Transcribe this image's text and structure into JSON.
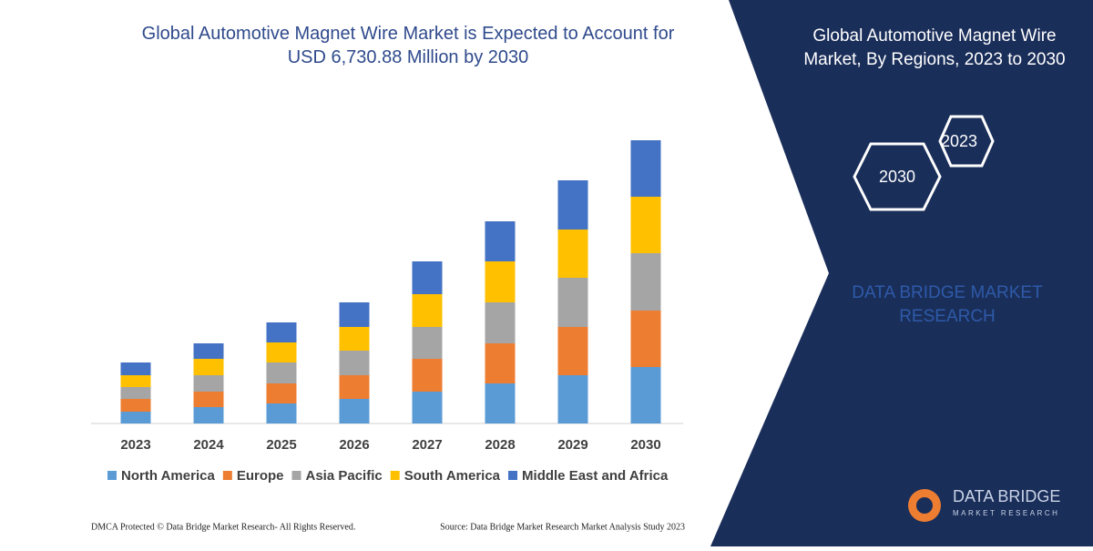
{
  "chart_data": {
    "type": "stacked_bar",
    "title": "Global Automotive Magnet Wire Market is Expected to Account for USD 6,730.88 Million by 2030",
    "categories": [
      "2023",
      "2024",
      "2025",
      "2026",
      "2027",
      "2028",
      "2029",
      "2030"
    ],
    "series": [
      {
        "name": "North America",
        "color": "#5b9bd5",
        "values": [
          13,
          18,
          22,
          27,
          35,
          44,
          53,
          62
        ]
      },
      {
        "name": "Europe",
        "color": "#ed7d31",
        "values": [
          14,
          17,
          22,
          26,
          36,
          44,
          53,
          62
        ]
      },
      {
        "name": "Asia Pacific",
        "color": "#a5a5a5",
        "values": [
          13,
          18,
          23,
          27,
          35,
          45,
          54,
          63
        ]
      },
      {
        "name": "South America",
        "color": "#ffc000",
        "values": [
          13,
          18,
          22,
          26,
          36,
          45,
          53,
          62
        ]
      },
      {
        "name": "Middle East and Africa",
        "color": "#4472c4",
        "values": [
          14,
          17,
          22,
          27,
          36,
          44,
          54,
          62
        ]
      }
    ],
    "legend": "bottom"
  },
  "panel": {
    "title": "Global Automotive Magnet Wire Market, By Regions, 2023 to 2030",
    "hex_small": "2023",
    "hex_large": "2030",
    "brand": "DATA BRIDGE MARKET RESEARCH",
    "logo_name": "DATA BRIDGE",
    "logo_sub": "MARKET RESEARCH"
  },
  "footer": {
    "left": "DMCA Protected © Data Bridge Market Research- All Rights Reserved.",
    "right": "Source: Data Bridge Market Research Market Analysis Study 2023"
  }
}
